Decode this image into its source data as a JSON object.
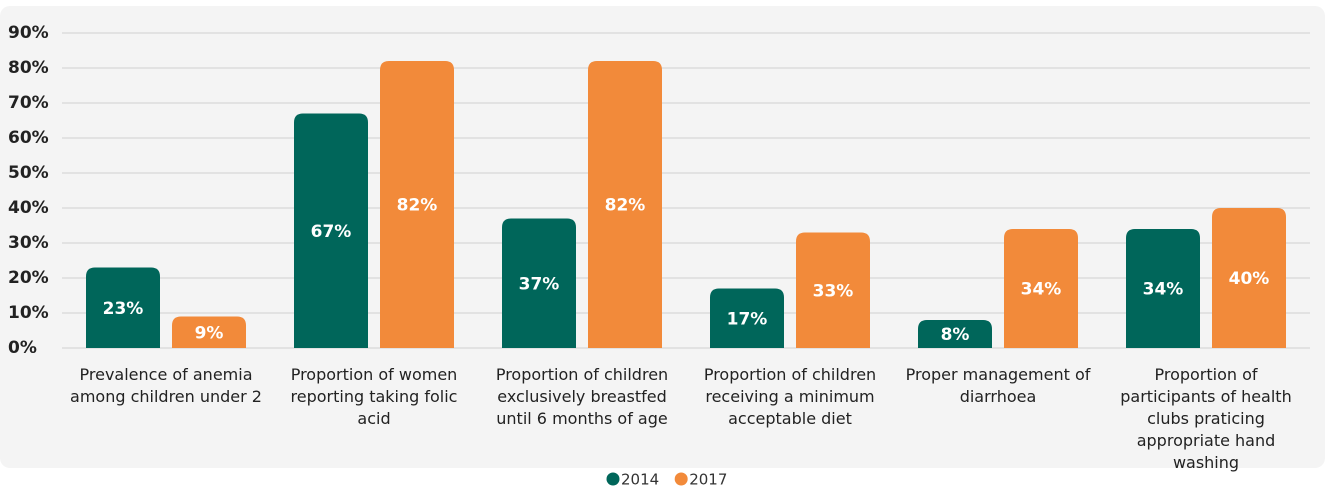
{
  "chart_data": {
    "type": "bar",
    "categories": [
      "Prevalence of anemia among children under 2",
      "Proportion of women reporting taking folic acid",
      "Proportion of children exclusively breastfed until 6 months of age",
      "Proportion of children receiving a minimum acceptable diet",
      "Proper management of diarrhoea",
      "Proportion of participants of health clubs praticing appropriate hand washing"
    ],
    "series": [
      {
        "name": "2014",
        "color": "#00665a",
        "values": [
          23,
          67,
          37,
          17,
          8,
          34
        ],
        "value_labels": [
          "23%",
          "67%",
          "37%",
          "17%",
          "8%",
          "34%"
        ]
      },
      {
        "name": "2017",
        "color": "#f28a3a",
        "values": [
          9,
          82,
          82,
          33,
          34,
          40
        ],
        "value_labels": [
          "9%",
          "82%",
          "82%",
          "33%",
          "34%",
          "40%"
        ]
      }
    ],
    "ylim": [
      0,
      90
    ],
    "yticks": [
      {
        "value": 0,
        "label": "0%"
      },
      {
        "value": 10,
        "label": "10%"
      },
      {
        "value": 20,
        "label": "20%"
      },
      {
        "value": 30,
        "label": "30%"
      },
      {
        "value": 40,
        "label": "40%"
      },
      {
        "value": 50,
        "label": "50%"
      },
      {
        "value": 60,
        "label": "60%"
      },
      {
        "value": 70,
        "label": "70%"
      },
      {
        "value": 80,
        "label": "80%"
      },
      {
        "value": 90,
        "label": "90%"
      }
    ],
    "grid": true,
    "legend": "bottom"
  }
}
